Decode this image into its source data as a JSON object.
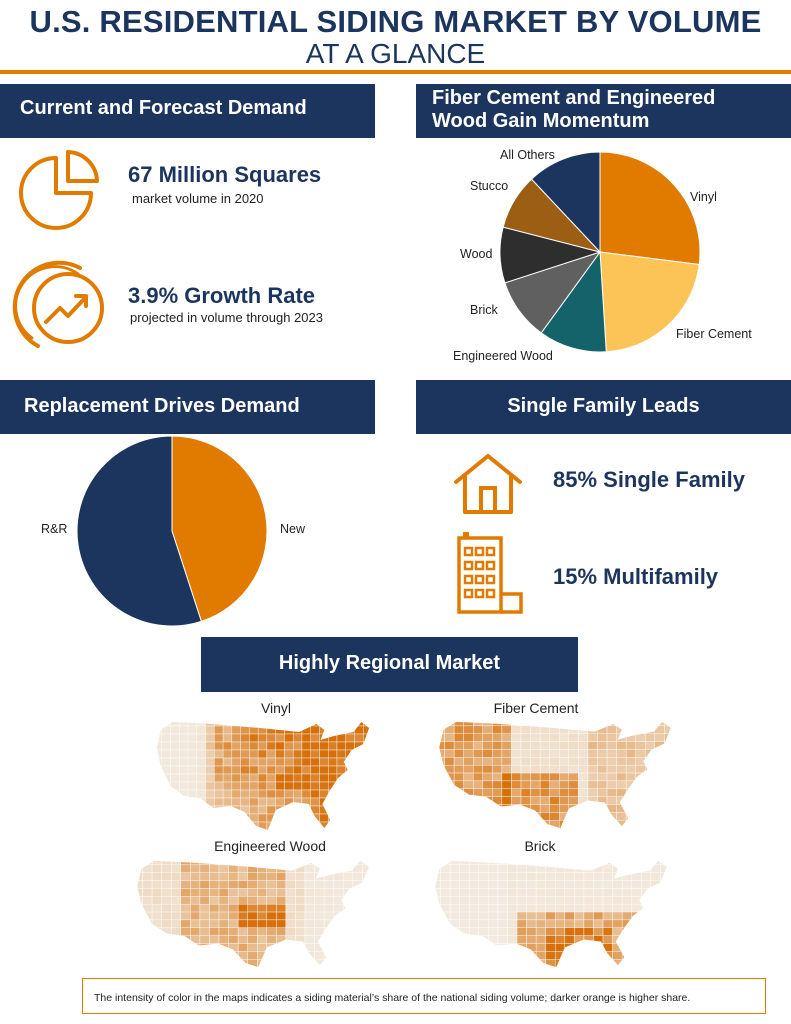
{
  "header": {
    "title": "U.S. RESIDENTIAL SIDING MARKET BY VOLUME",
    "subtitle": "AT A GLANCE"
  },
  "sections": {
    "demand": "Current and Forecast Demand",
    "momentum_line1": "Fiber Cement and Engineered",
    "momentum_line2": "Wood Gain Momentum",
    "replacement": "Replacement Drives Demand",
    "single_family": "Single Family Leads",
    "regional": "Highly Regional Market"
  },
  "stats": {
    "volume_value": "67 Million Squares",
    "volume_caption": "market volume in 2020",
    "growth_value": "3.9% Growth Rate",
    "growth_caption": "projected in volume through 2023"
  },
  "housing": {
    "single_family": "85% Single Family",
    "multifamily": "15% Multifamily"
  },
  "maps": {
    "vinyl": "Vinyl",
    "fiber_cement": "Fiber Cement",
    "engineered_wood": "Engineered Wood",
    "brick": "Brick"
  },
  "footnote": "The intensity of color in the maps indicates a siding material’s share of the national siding volume; darker orange is higher share.",
  "colors": {
    "navy": "#1c355e",
    "orange": "#e07b00",
    "light_orange": "#fcc457",
    "teal": "#14626a",
    "gray": "#606060",
    "charcoal": "#2e2e2e",
    "brown": "#9c5e12"
  },
  "icons": [
    "pie-chart-icon",
    "growth-arrow-icon",
    "house-icon",
    "apartment-building-icon"
  ],
  "chart_data": [
    {
      "type": "pie",
      "labels": [
        "Vinyl",
        "Fiber Cement",
        "Engineered Wood",
        "Brick",
        "Wood",
        "Stucco",
        "All Others"
      ],
      "values": [
        27,
        22,
        11,
        10,
        9,
        9,
        12
      ],
      "colors": [
        "#e07b00",
        "#fcc457",
        "#14626a",
        "#606060",
        "#2e2e2e",
        "#9c5e12",
        "#1c355e"
      ]
    },
    {
      "type": "pie",
      "labels": [
        "New",
        "R&R"
      ],
      "values": [
        45,
        55
      ],
      "colors": [
        "#e07b00",
        "#1c355e"
      ]
    }
  ]
}
